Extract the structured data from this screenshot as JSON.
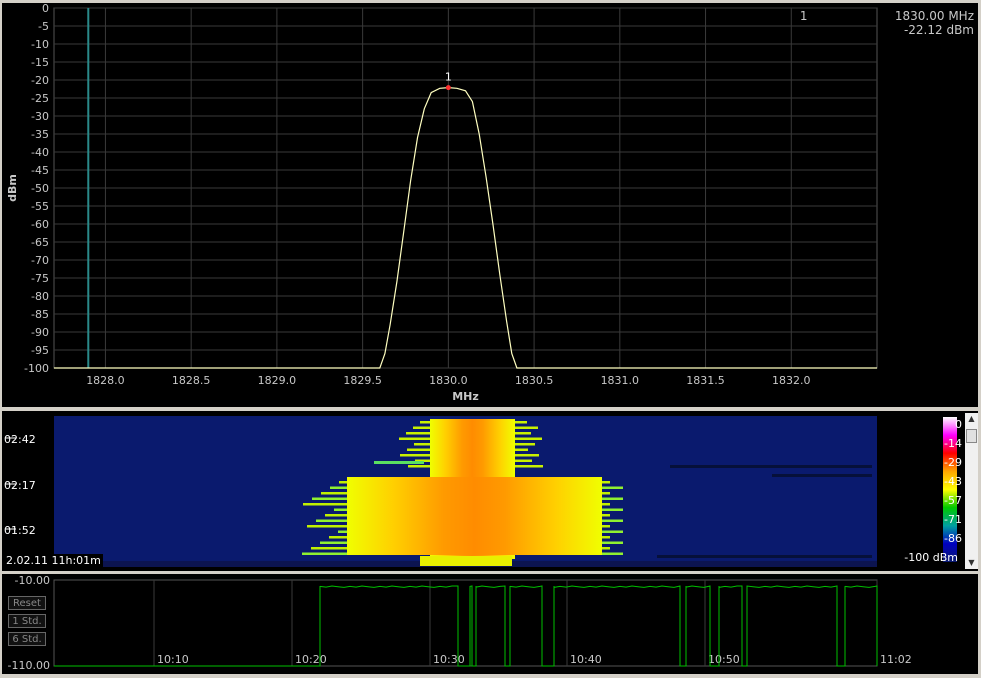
{
  "chart_data": [
    {
      "type": "line",
      "xlabel": "MHz",
      "ylabel": "dBm",
      "xlim": [
        1827.7,
        1832.5
      ],
      "ylim": [
        -100,
        0
      ],
      "x_ticks": [
        "1828.0",
        "1828.5",
        "1829.0",
        "1829.5",
        "1830.0",
        "1830.5",
        "1831.0",
        "1831.5",
        "1832.0"
      ],
      "x_tick_values": [
        1828.0,
        1828.5,
        1829.0,
        1829.5,
        1830.0,
        1830.5,
        1831.0,
        1831.5,
        1832.0
      ],
      "y_ticks": [
        "0",
        "-5",
        "-10",
        "-15",
        "-20",
        "-25",
        "-30",
        "-35",
        "-40",
        "-45",
        "-50",
        "-55",
        "-60",
        "-65",
        "-70",
        "-75",
        "-80",
        "-85",
        "-90",
        "-95",
        "-100"
      ],
      "y_tick_values": [
        0,
        -5,
        -10,
        -15,
        -20,
        -25,
        -30,
        -35,
        -40,
        -45,
        -50,
        -55,
        -60,
        -65,
        -70,
        -75,
        -80,
        -85,
        -90,
        -95,
        -100
      ],
      "grid": true,
      "vline_x": 1827.9,
      "series": [
        {
          "x": [
            1827.7,
            1829.6,
            1829.63,
            1829.66,
            1829.7,
            1829.74,
            1829.78,
            1829.82,
            1829.86,
            1829.9,
            1829.95,
            1830.0,
            1830.05,
            1830.1,
            1830.14,
            1830.18,
            1830.22,
            1830.26,
            1830.3,
            1830.34,
            1830.37,
            1830.4,
            1832.5
          ],
          "y": [
            -100,
            -100,
            -96,
            -88,
            -76,
            -62,
            -48,
            -36,
            -28,
            -23.5,
            -22.3,
            -22.12,
            -22.3,
            -23,
            -26,
            -35,
            -47,
            -60,
            -74,
            -87,
            -96,
            -100,
            -100
          ]
        }
      ],
      "marker": {
        "id": "1",
        "x": 1830.0,
        "y": -22.12,
        "freq_label": "1830.00 MHz",
        "level_label": "-22.12 dBm"
      }
    },
    {
      "type": "heatmap",
      "y_tick_labels": [
        "02:42",
        "02:17",
        "01:52"
      ],
      "datetime_label": "2.02.11 11h:01m",
      "colorbar_labels": [
        "0",
        "-14",
        "-29",
        "-43",
        "-57",
        "-71",
        "-86",
        "-100 dBm"
      ],
      "colors": [
        "#ffffff",
        "#ff00ff",
        "#ff0000",
        "#ffa500",
        "#ffff00",
        "#00c800",
        "#00a0a0",
        "#0000c0",
        "#0a1a6e"
      ]
    },
    {
      "type": "line",
      "y_labels": [
        "-10.00",
        "-110.00"
      ],
      "ylim": [
        -110,
        -10
      ],
      "x_tick_labels": [
        "10:10",
        "10:20",
        "10:30",
        "10:40",
        "10:50",
        "11:02"
      ],
      "buttons": [
        "Reset",
        "1 Std.",
        "6 Std."
      ],
      "series_color": "#00c000"
    }
  ],
  "colors": {
    "grid": "#3a3a3a",
    "trace": "#ffffc0",
    "marker": "#ff3030",
    "vline": "#2a8a8a",
    "text": "#c8c8c8"
  }
}
